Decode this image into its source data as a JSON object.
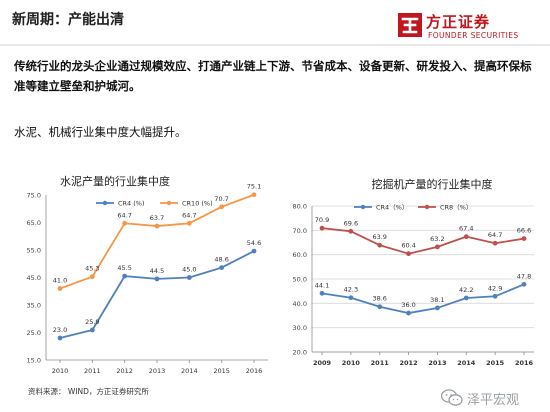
{
  "slide": {
    "title": "新周期：产能出清",
    "paragraph1": "传统行业的龙头企业通过规模效应、打通产业链上下游、节省成本、设备更新、研发投入、提高环保标准等建立壁垒和护城河。",
    "paragraph2": "水泥、机械行业集中度大幅提升。",
    "source": "资料来源：  WIND，方正证券研究所"
  },
  "logo": {
    "cn": "方正证券",
    "en": "FOUNDER SECURITIES"
  },
  "watermark": {
    "text": "泽平宏观"
  },
  "colors": {
    "blue": "#4f81bd",
    "orange": "#f79646",
    "red": "#c0504d",
    "brand": "#c0161d"
  },
  "chart_data": [
    {
      "type": "line",
      "title": "水泥产量的行业集中度",
      "x": [
        "2010",
        "2011",
        "2012",
        "2013",
        "2014",
        "2015",
        "2016"
      ],
      "ylim": [
        15,
        75
      ],
      "yticks": [
        "15.0",
        "25.0",
        "35.0",
        "45.0",
        "55.0",
        "65.0",
        "75.0"
      ],
      "grid": false,
      "legend": "top",
      "series": [
        {
          "name": "CR4 (%)",
          "values": [
            23.0,
            25.9,
            45.5,
            44.5,
            45.0,
            48.6,
            54.6
          ],
          "labels": [
            "23.0",
            "25.9",
            "45.5",
            "44.5",
            "45.0",
            "48.6",
            "54.6"
          ],
          "color": "#4f81bd",
          "marker": "circle"
        },
        {
          "name": "CR10 (%)",
          "values": [
            41.0,
            45.3,
            64.7,
            63.7,
            64.7,
            70.7,
            75.1
          ],
          "labels": [
            "41.0",
            "45.3",
            "64.7",
            "63.7",
            "64.7",
            "70.7",
            "75.1"
          ],
          "color": "#f79646",
          "marker": "circle"
        }
      ]
    },
    {
      "type": "line",
      "title": "挖掘机产量的行业集中度",
      "x": [
        "2009",
        "2010",
        "2011",
        "2012",
        "2013",
        "2014",
        "2015",
        "2016"
      ],
      "ylim": [
        20,
        80
      ],
      "yticks": [
        "20.0",
        "30.0",
        "40.0",
        "50.0",
        "60.0",
        "70.0",
        "80.0"
      ],
      "grid": true,
      "legend": "top",
      "series": [
        {
          "name": "CR4（%）",
          "values": [
            44.1,
            42.3,
            38.6,
            36.0,
            38.1,
            42.2,
            42.9,
            47.8
          ],
          "labels": [
            "44.1",
            "42.3",
            "38.6",
            "36.0",
            "38.1",
            "42.2",
            "42.9",
            "47.8"
          ],
          "color": "#4f81bd",
          "marker": "circle"
        },
        {
          "name": "CR8（%）",
          "values": [
            70.9,
            69.6,
            63.9,
            60.4,
            63.2,
            67.4,
            64.7,
            66.6
          ],
          "labels": [
            "70.9",
            "69.6",
            "63.9",
            "60.4",
            "63.2",
            "67.4",
            "64.7",
            "66.6"
          ],
          "color": "#c0504d",
          "marker": "circle"
        }
      ]
    }
  ]
}
